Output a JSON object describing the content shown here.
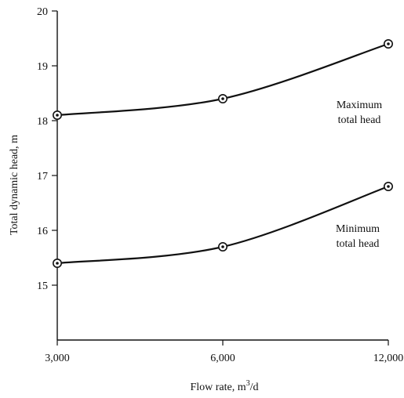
{
  "chart_data": {
    "type": "line",
    "title": "",
    "xlabel": "Flow rate, m",
    "xlabel_sup": "3",
    "xlabel_suffix": "/d",
    "ylabel": "Total dynamic head, m",
    "x": [
      3000,
      6000,
      12000
    ],
    "x_tick_labels": [
      "3,000",
      "6,000",
      "12,000"
    ],
    "y_ticks": [
      15,
      16,
      17,
      18,
      19,
      20
    ],
    "ylim": [
      14,
      20
    ],
    "grid": false,
    "series": [
      {
        "name": "Maximum total head",
        "label_lines": [
          "Maximum",
          "total head"
        ],
        "values": [
          18.1,
          18.4,
          19.4
        ]
      },
      {
        "name": "Minimum total head",
        "label_lines": [
          "Minimum",
          "total head"
        ],
        "values": [
          15.4,
          15.7,
          16.8
        ]
      }
    ]
  }
}
